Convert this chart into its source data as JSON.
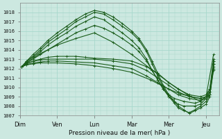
{
  "xlabel": "Pression niveau de la mer( hPa )",
  "bg_color": "#cce8e0",
  "grid_color": "#a8d8cc",
  "line_color": "#1a5c1a",
  "ylim": [
    1007,
    1019
  ],
  "yticks": [
    1007,
    1008,
    1009,
    1010,
    1011,
    1012,
    1013,
    1014,
    1015,
    1016,
    1017,
    1018
  ],
  "xtick_labels": [
    "Dim",
    "Ven",
    "Lun",
    "Mar",
    "Mer",
    "Jeu"
  ],
  "series": [
    {
      "x": [
        0.05,
        0.18,
        0.35,
        0.55,
        0.75,
        1.0,
        1.25,
        1.5,
        1.75,
        2.0,
        2.25,
        2.5,
        2.75,
        3.0,
        3.2,
        3.4,
        3.55,
        3.7,
        3.85,
        4.0,
        4.15,
        4.25,
        4.4,
        4.55,
        4.7,
        4.85,
        5.0,
        5.1,
        5.2
      ],
      "y": [
        1012.2,
        1012.8,
        1013.5,
        1014.2,
        1015.0,
        1015.8,
        1016.5,
        1017.2,
        1017.8,
        1018.2,
        1018.0,
        1017.5,
        1016.8,
        1016.0,
        1015.2,
        1014.0,
        1012.8,
        1011.5,
        1010.2,
        1009.2,
        1008.5,
        1008.0,
        1007.6,
        1007.2,
        1007.5,
        1007.8,
        1008.2,
        1009.0,
        1012.8
      ]
    },
    {
      "x": [
        0.05,
        0.18,
        0.35,
        0.55,
        0.75,
        1.0,
        1.25,
        1.5,
        1.75,
        2.0,
        2.25,
        2.5,
        2.75,
        3.0,
        3.2,
        3.4,
        3.55,
        3.7,
        3.85,
        4.0,
        4.15,
        4.25,
        4.4,
        4.55,
        4.7,
        4.85,
        5.0,
        5.1,
        5.2
      ],
      "y": [
        1012.2,
        1012.8,
        1013.3,
        1014.0,
        1014.8,
        1015.5,
        1016.2,
        1017.0,
        1017.5,
        1018.0,
        1017.8,
        1017.2,
        1016.5,
        1015.8,
        1015.0,
        1013.8,
        1012.5,
        1011.2,
        1010.0,
        1009.0,
        1008.3,
        1007.8,
        1007.5,
        1007.3,
        1007.6,
        1008.0,
        1008.5,
        1009.2,
        1012.5
      ]
    },
    {
      "x": [
        0.05,
        0.18,
        0.35,
        0.55,
        0.75,
        1.0,
        1.25,
        1.5,
        1.75,
        2.0,
        2.25,
        2.5,
        2.75,
        3.0,
        3.2,
        3.4,
        3.55,
        3.7,
        3.85,
        4.0,
        4.15,
        4.25,
        4.4,
        4.7,
        4.85,
        5.0,
        5.1,
        5.2
      ],
      "y": [
        1012.2,
        1012.7,
        1013.2,
        1013.8,
        1014.5,
        1015.2,
        1015.8,
        1016.5,
        1017.0,
        1017.5,
        1017.2,
        1016.5,
        1015.8,
        1015.0,
        1014.2,
        1013.0,
        1011.8,
        1010.8,
        1009.8,
        1009.0,
        1008.5,
        1008.2,
        1008.0,
        1008.0,
        1008.2,
        1008.8,
        1009.5,
        1012.8
      ]
    },
    {
      "x": [
        0.05,
        0.18,
        0.35,
        0.55,
        0.75,
        1.0,
        1.25,
        1.5,
        1.75,
        2.0,
        2.25,
        2.5,
        2.75,
        3.0,
        3.2,
        3.4,
        3.55,
        3.7,
        3.85,
        4.0,
        4.15,
        4.4,
        4.7,
        4.85,
        5.0,
        5.1,
        5.2
      ],
      "y": [
        1012.2,
        1012.6,
        1013.0,
        1013.5,
        1014.0,
        1014.6,
        1015.2,
        1015.8,
        1016.2,
        1016.6,
        1016.3,
        1015.8,
        1015.2,
        1014.5,
        1013.8,
        1012.8,
        1011.8,
        1010.8,
        1009.8,
        1009.2,
        1008.8,
        1008.5,
        1008.3,
        1008.5,
        1009.0,
        1009.8,
        1013.0
      ]
    },
    {
      "x": [
        0.05,
        0.18,
        0.35,
        0.55,
        0.75,
        1.0,
        1.25,
        1.5,
        1.75,
        2.0,
        2.5,
        3.0,
        3.4,
        3.7,
        4.0,
        4.25,
        4.55,
        4.85,
        5.0,
        5.1,
        5.2
      ],
      "y": [
        1012.2,
        1012.5,
        1012.8,
        1013.0,
        1013.2,
        1013.3,
        1013.3,
        1013.3,
        1013.2,
        1013.1,
        1013.0,
        1012.8,
        1012.2,
        1011.5,
        1010.5,
        1009.8,
        1009.2,
        1009.0,
        1009.2,
        1009.8,
        1012.5
      ]
    },
    {
      "x": [
        0.05,
        0.18,
        0.35,
        0.55,
        0.75,
        1.0,
        1.5,
        2.0,
        2.5,
        3.0,
        3.4,
        3.7,
        4.0,
        4.25,
        4.55,
        4.85,
        5.0,
        5.1,
        5.2
      ],
      "y": [
        1012.2,
        1012.5,
        1012.8,
        1012.9,
        1013.0,
        1013.0,
        1013.0,
        1013.0,
        1012.8,
        1012.5,
        1011.8,
        1011.0,
        1010.2,
        1009.5,
        1009.0,
        1008.8,
        1009.0,
        1009.5,
        1012.2
      ]
    },
    {
      "x": [
        0.05,
        0.18,
        0.35,
        0.55,
        0.75,
        1.0,
        1.5,
        2.0,
        2.5,
        3.0,
        3.4,
        3.7,
        4.0,
        4.25,
        4.55,
        4.85,
        5.0,
        5.1,
        5.2
      ],
      "y": [
        1012.2,
        1012.4,
        1012.6,
        1012.7,
        1012.8,
        1012.8,
        1012.7,
        1012.6,
        1012.3,
        1012.0,
        1011.2,
        1010.5,
        1009.8,
        1009.2,
        1008.8,
        1008.6,
        1008.8,
        1009.2,
        1012.0
      ]
    },
    {
      "x": [
        0.05,
        0.18,
        0.35,
        0.55,
        0.75,
        1.0,
        1.5,
        2.0,
        2.5,
        3.0,
        3.5,
        3.8,
        4.0,
        4.3,
        4.6,
        4.85,
        5.0,
        5.1,
        5.2
      ],
      "y": [
        1012.2,
        1012.4,
        1012.5,
        1012.6,
        1012.6,
        1012.6,
        1012.5,
        1012.3,
        1012.0,
        1011.6,
        1010.8,
        1010.2,
        1009.8,
        1009.3,
        1009.0,
        1008.8,
        1009.0,
        1009.2,
        1011.8
      ]
    },
    {
      "x": [
        0.05,
        0.5,
        1.0,
        1.5,
        2.0,
        2.5,
        3.0,
        3.5,
        4.0,
        4.5,
        4.85,
        5.0,
        5.2
      ],
      "y": [
        1012.2,
        1013.5,
        1014.5,
        1015.2,
        1015.8,
        1014.8,
        1013.5,
        1012.0,
        1010.5,
        1009.2,
        1008.5,
        1009.0,
        1013.5
      ]
    }
  ]
}
